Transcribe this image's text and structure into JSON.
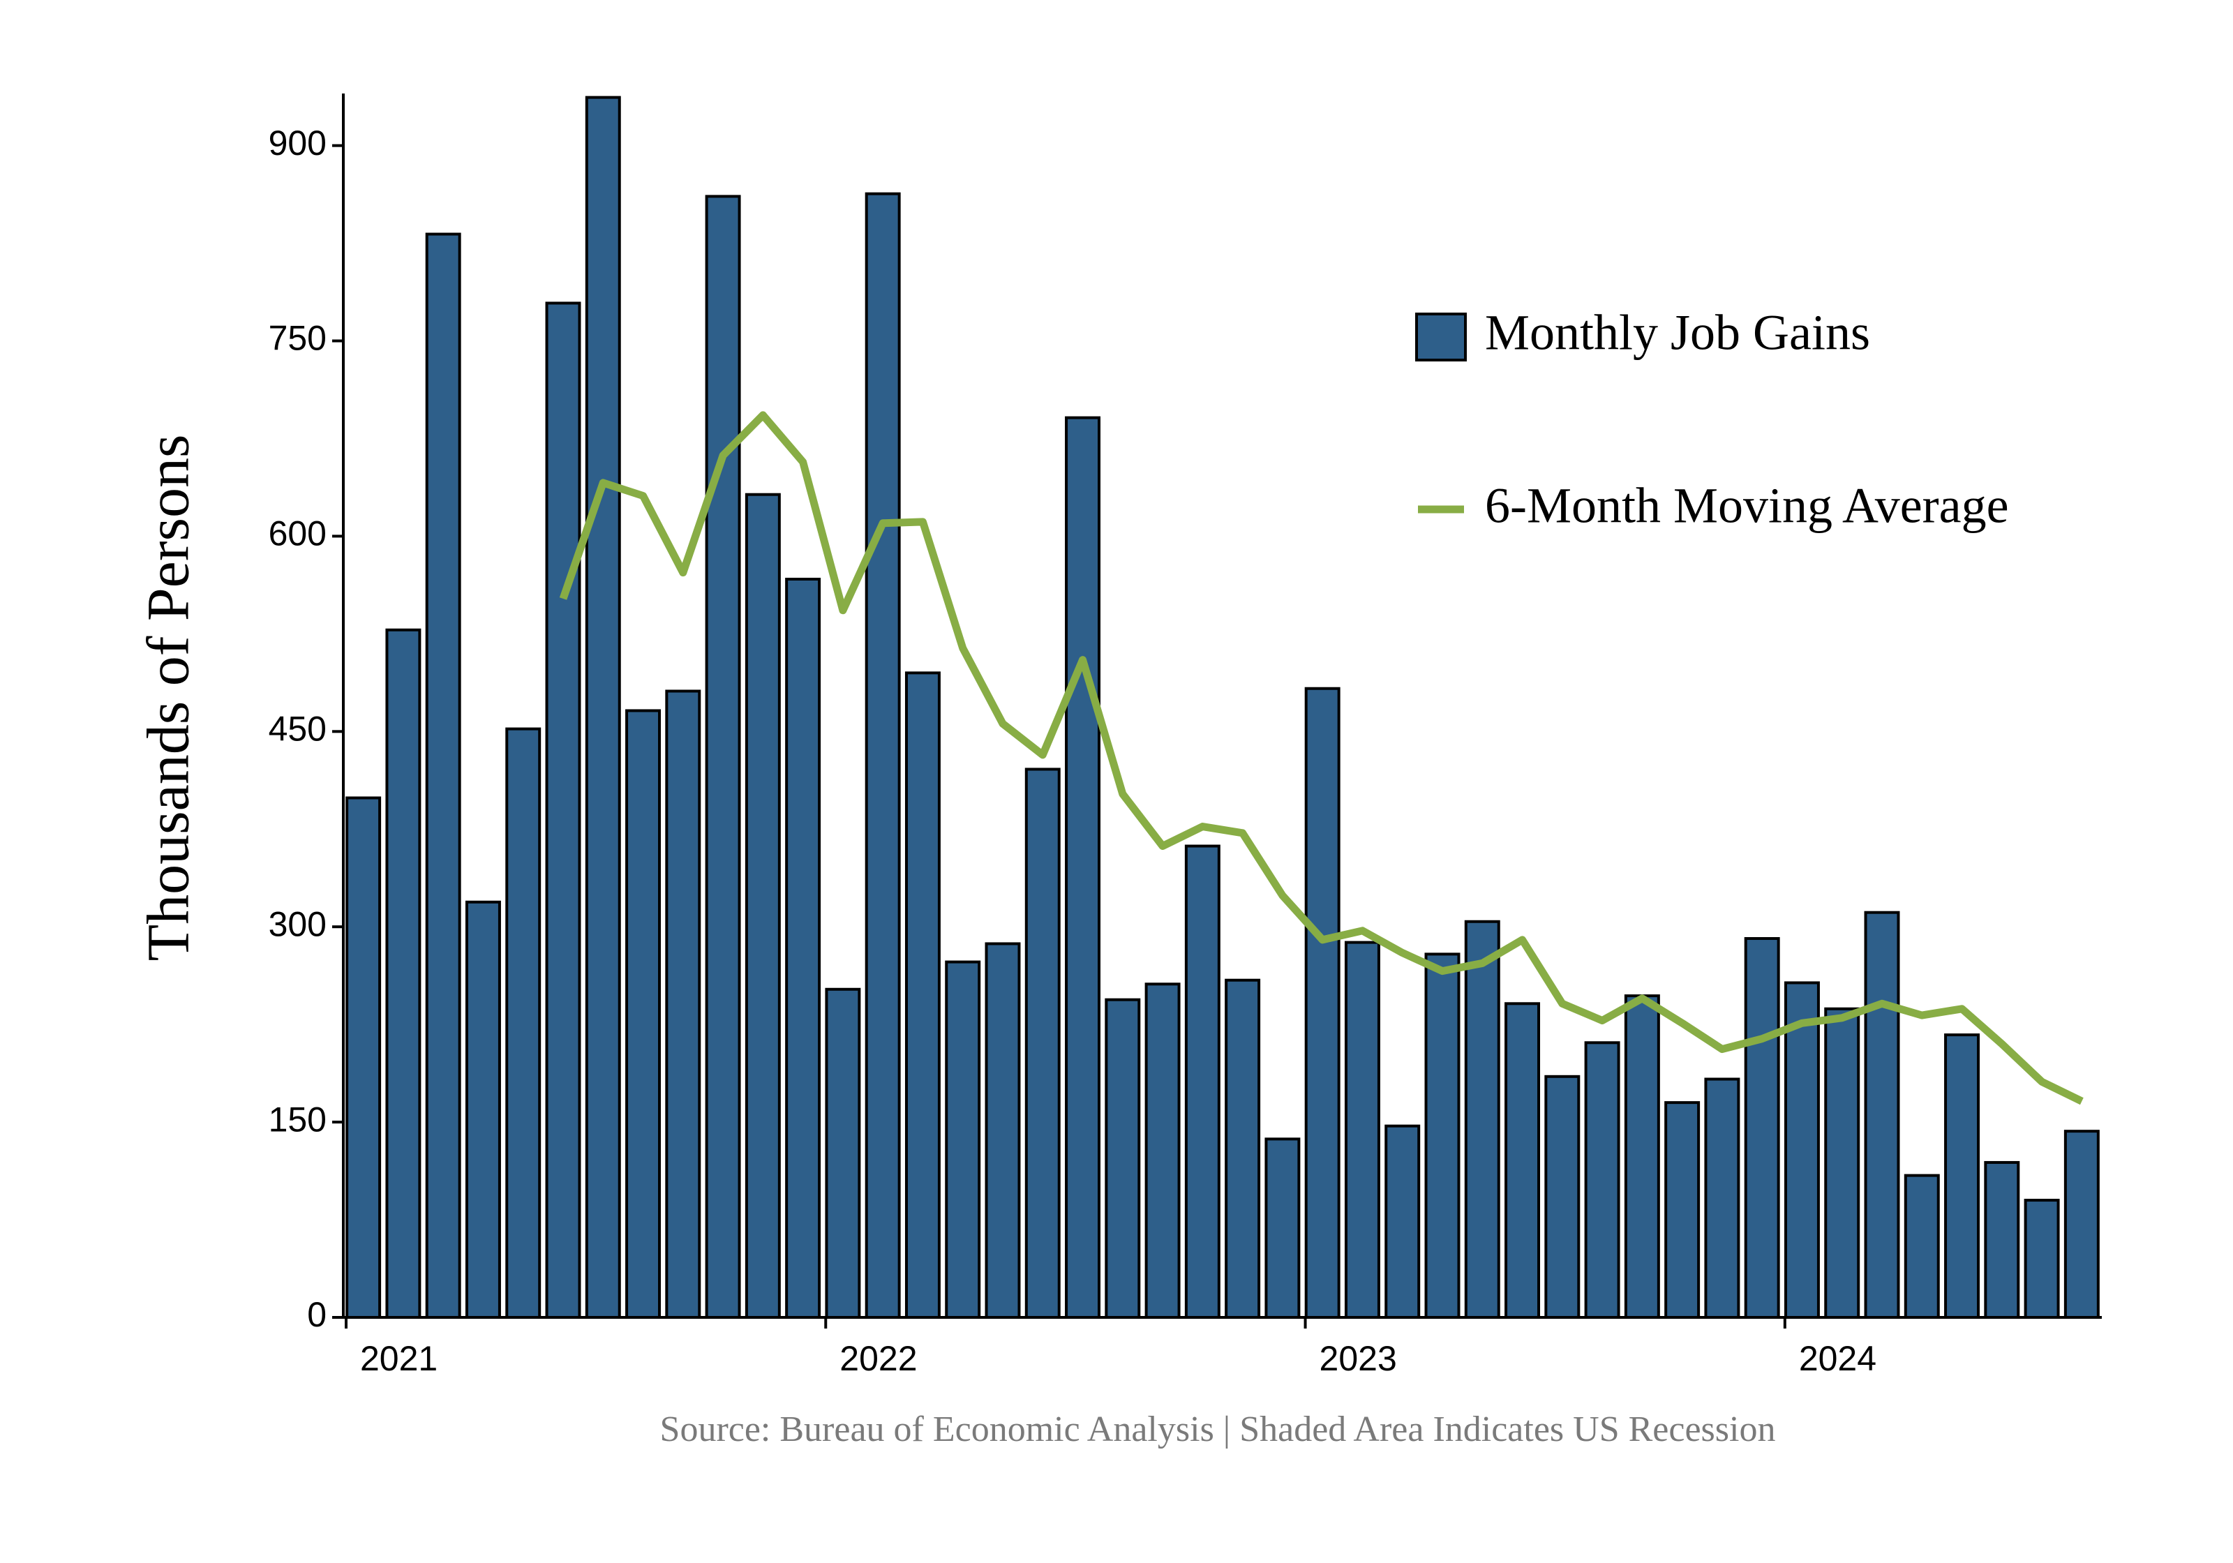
{
  "chart_data": {
    "type": "bar",
    "ylabel": "Thousands of Persons",
    "caption": "Source: Bureau of Economic Analysis | Shaded Area Indicates US Recession",
    "ylim": [
      0,
      940
    ],
    "yticks": [
      "0",
      "150",
      "300",
      "450",
      "600",
      "750",
      "900"
    ],
    "x_tick_labels": [
      "2021",
      "2022",
      "2023",
      "2024"
    ],
    "x_start": "2021-01",
    "grid": false,
    "legend_position": "top-right",
    "colors": {
      "bars": "#2e5f8a",
      "bar_edge": "#000000",
      "line": "#88ad45"
    },
    "series": [
      {
        "name": "Monthly Job Gains",
        "type": "bar",
        "values": [
          399,
          528,
          832,
          319,
          452,
          779,
          937,
          466,
          481,
          861,
          632,
          567,
          252,
          863,
          495,
          273,
          287,
          421,
          691,
          244,
          256,
          362,
          259,
          137,
          483,
          288,
          147,
          279,
          304,
          241,
          185,
          211,
          247,
          165,
          183,
          291,
          257,
          237,
          311,
          109,
          217,
          119,
          90,
          143
        ]
      },
      {
        "name": "6-Month Moving Average",
        "type": "line",
        "values": [
          null,
          null,
          null,
          null,
          null,
          552,
          641,
          631,
          572,
          662,
          693,
          657,
          543,
          610,
          611,
          514,
          456,
          432,
          505,
          402,
          362,
          377,
          372,
          324,
          290,
          297,
          280,
          266,
          272,
          290,
          241,
          228,
          245,
          226,
          206,
          214,
          226,
          230,
          241,
          232,
          237,
          210,
          181,
          166
        ]
      }
    ]
  }
}
